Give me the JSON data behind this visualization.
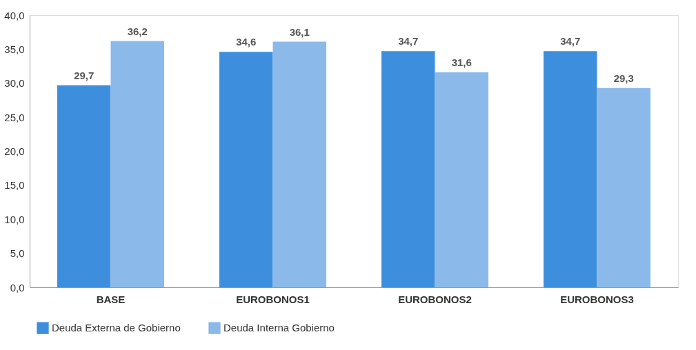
{
  "chart_data": {
    "type": "bar",
    "categories": [
      "BASE",
      "EUROBONOS1",
      "EUROBONOS2",
      "EUROBONOS3"
    ],
    "series": [
      {
        "name": "Deuda Externa de Gobierno",
        "color": "#3d8fde",
        "values": [
          29.7,
          34.6,
          34.7,
          34.7
        ],
        "value_labels": [
          "29,7",
          "34,6",
          "34,7",
          "34,7"
        ]
      },
      {
        "name": "Deuda Interna Gobierno",
        "color": "#8bbaea",
        "values": [
          36.2,
          36.1,
          31.6,
          29.3
        ],
        "value_labels": [
          "36,2",
          "36,1",
          "31,6",
          "29,3"
        ]
      }
    ],
    "ylim": [
      0,
      40
    ],
    "yticks": [
      {
        "value": 0,
        "label": "0,0"
      },
      {
        "value": 5,
        "label": "5,0"
      },
      {
        "value": 10,
        "label": "10,0"
      },
      {
        "value": 15,
        "label": "15,0"
      },
      {
        "value": 20,
        "label": "20,0"
      },
      {
        "value": 25,
        "label": "25,0"
      },
      {
        "value": 30,
        "label": "30,0"
      },
      {
        "value": 35,
        "label": "35,0"
      },
      {
        "value": 40,
        "label": "40,0"
      }
    ],
    "grid": false,
    "legend": "bottom left"
  }
}
